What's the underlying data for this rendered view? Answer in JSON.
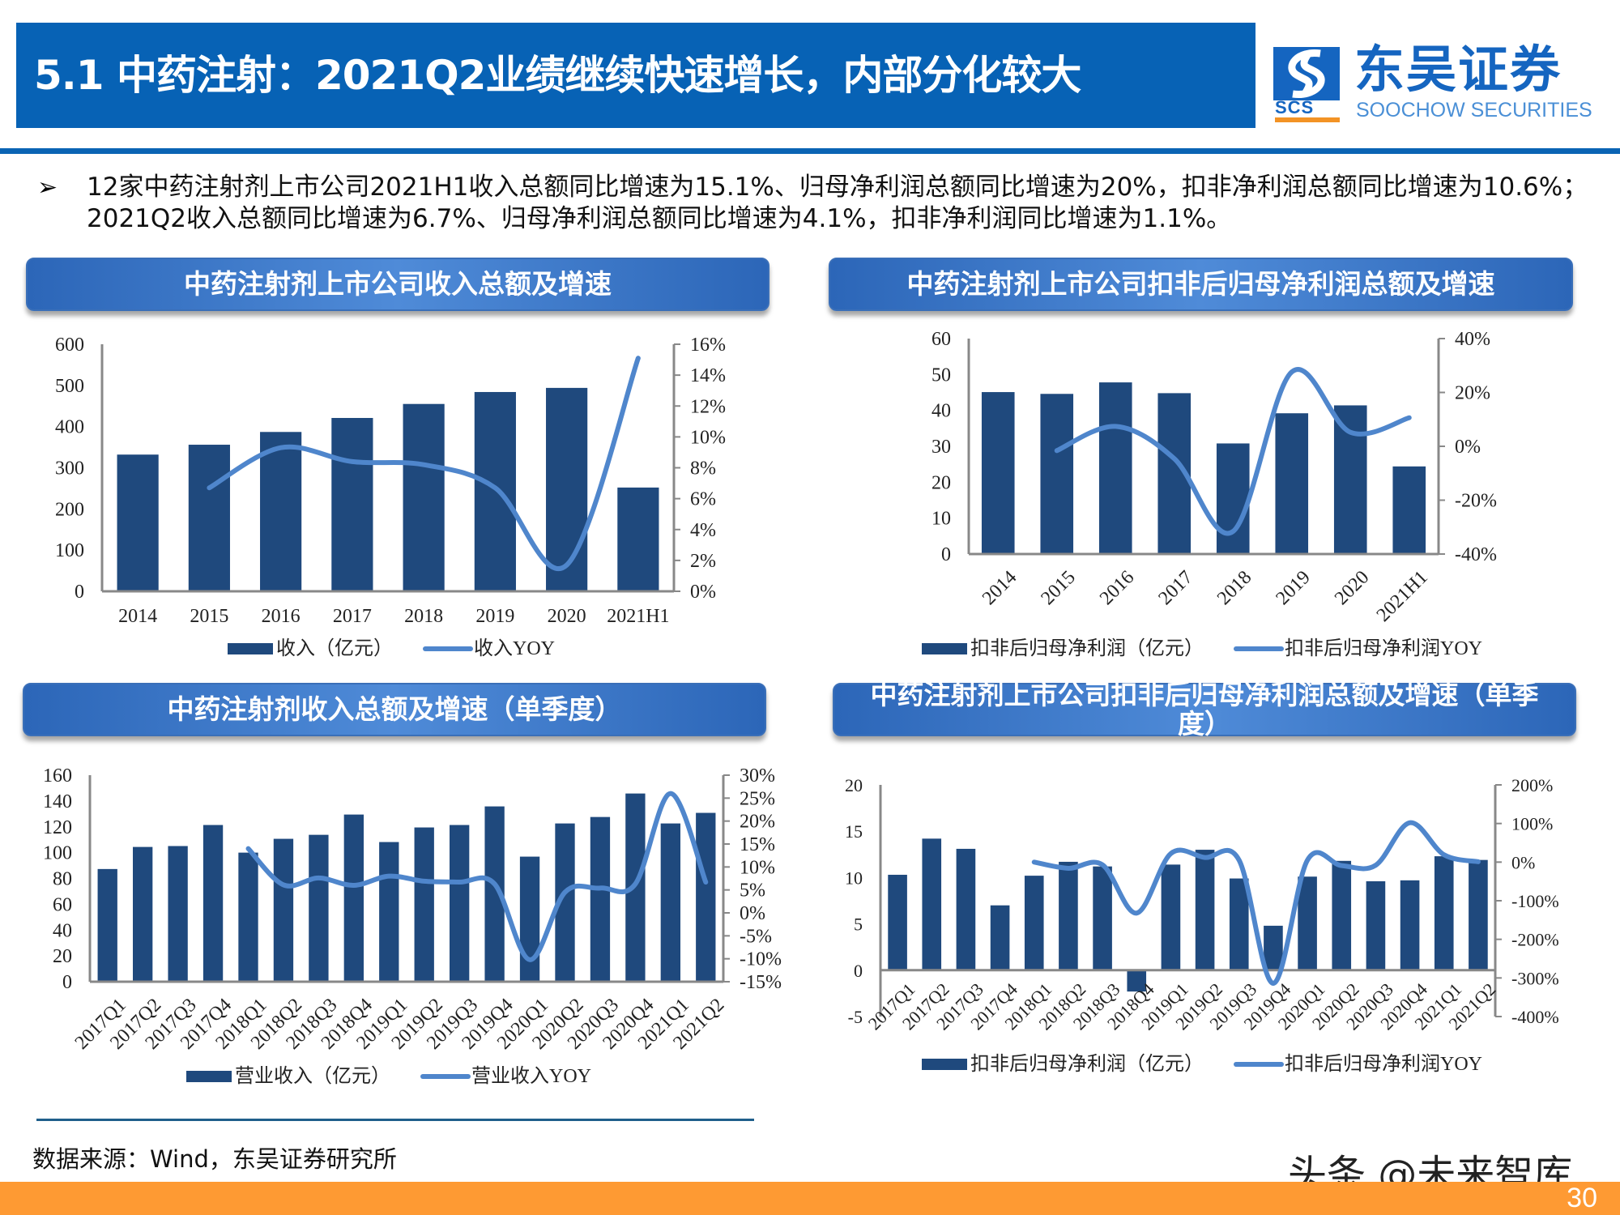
{
  "header": {
    "title": "5.1 中药注射：2021Q2业绩继续快速增长，内部分化较大",
    "logo_cn": "东吴证券",
    "logo_en": "SOOCHOW SECURITIES",
    "logo_abbr": "SCS"
  },
  "summary": {
    "bullet_icon": "arrowhead-bullet",
    "text": "12家中药注射剂上市公司2021H1收入总额同比增速为15.1%、归母净利润总额同比增速为20%，扣非净利润总额同比增速为10.6%；2021Q2收入总额同比增速为6.7%、归母净利润总额同比增速为4.1%，扣非净利润同比增速为1.1%。"
  },
  "panels": [
    {
      "title": "中药注射剂上市公司收入总额及增速"
    },
    {
      "title": "中药注射剂上市公司扣非后归母净利润总额及增速"
    },
    {
      "title": "中药注射剂收入总额及增速（单季度）"
    },
    {
      "title": "中药注射剂上市公司扣非后归母净利润总额及增速（单季度）"
    }
  ],
  "colors": {
    "bar": "#1f497d",
    "line": "#4f86cc",
    "title_bar": "#0762b5",
    "footer": "#fe9a33"
  },
  "chart_data": [
    {
      "type": "bar+line",
      "categories": [
        "2014",
        "2015",
        "2016",
        "2017",
        "2018",
        "2019",
        "2020",
        "2021H1"
      ],
      "ylim": [
        0,
        600
      ],
      "ystep": 100,
      "y2lim": [
        0,
        16
      ],
      "y2step": 2,
      "y2_format": "percent",
      "grid": false,
      "legend": "bottom",
      "series": [
        {
          "name": "收入（亿元）",
          "type": "bar",
          "axis": "left",
          "values": [
            332,
            356,
            387,
            421,
            455,
            484,
            494,
            252
          ]
        },
        {
          "name": "收入YOY",
          "type": "line",
          "axis": "right",
          "values": [
            null,
            6.7,
            9.3,
            8.4,
            8.2,
            6.7,
            1.7,
            15.1
          ]
        }
      ]
    },
    {
      "type": "bar+line",
      "categories": [
        "2014",
        "2015",
        "2016",
        "2017",
        "2018",
        "2019",
        "2020",
        "2021H1"
      ],
      "ylim": [
        0,
        60
      ],
      "ystep": 10,
      "y2lim": [
        -40,
        40
      ],
      "y2step": 20,
      "y2_format": "percent",
      "grid": false,
      "legend": "bottom",
      "series": [
        {
          "name": "扣非后归母净利润（亿元）",
          "type": "bar",
          "axis": "left",
          "values": [
            45.1,
            44.6,
            47.8,
            44.8,
            30.8,
            39.2,
            41.4,
            24.4
          ]
        },
        {
          "name": "扣非后归母净利润YOY",
          "type": "line",
          "axis": "right",
          "values": [
            null,
            -1.6,
            7.4,
            -4.6,
            -31.6,
            27.6,
            5.2,
            10.6
          ]
        }
      ]
    },
    {
      "type": "bar+line",
      "categories": [
        "2017Q1",
        "2017Q2",
        "2017Q3",
        "2017Q4",
        "2018Q1",
        "2018Q2",
        "2018Q3",
        "2018Q4",
        "2019Q1",
        "2019Q2",
        "2019Q3",
        "2019Q4",
        "2020Q1",
        "2020Q2",
        "2020Q3",
        "2020Q4",
        "2021Q1",
        "2021Q2"
      ],
      "ylim": [
        0,
        160
      ],
      "ystep": 20,
      "y2lim": [
        -15,
        30
      ],
      "y2step": 5,
      "y2_format": "percent",
      "grid": false,
      "legend": "bottom",
      "series": [
        {
          "name": "营业收入（亿元）",
          "type": "bar",
          "axis": "left",
          "values": [
            87.3,
            104.4,
            105.1,
            121.4,
            100.0,
            110.7,
            113.8,
            129.5,
            108.2,
            119.5,
            121.4,
            135.8,
            96.9,
            122.6,
            127.6,
            145.8,
            122.6,
            130.8
          ]
        },
        {
          "name": "营业收入YOY",
          "type": "line",
          "axis": "right",
          "values": [
            null,
            null,
            null,
            null,
            14.0,
            6.1,
            7.6,
            6.0,
            8.0,
            6.9,
            6.7,
            6.3,
            -10.2,
            4.5,
            5.4,
            6.3,
            26.0,
            6.7
          ]
        }
      ]
    },
    {
      "type": "bar+line",
      "categories": [
        "2017Q1",
        "2017Q2",
        "2017Q3",
        "2017Q4",
        "2018Q1",
        "2018Q2",
        "2018Q3",
        "2018Q4",
        "2019Q1",
        "2019Q2",
        "2019Q3",
        "2019Q4",
        "2020Q1",
        "2020Q2",
        "2020Q3",
        "2020Q4",
        "2021Q1",
        "2021Q2"
      ],
      "ylim": [
        -5,
        20
      ],
      "ystep": 5,
      "y2lim": [
        -400,
        200
      ],
      "y2step": 100,
      "y2_format": "percent",
      "grid": false,
      "legend": "bottom",
      "series": [
        {
          "name": "扣非后归母净利润（亿元）",
          "type": "bar",
          "axis": "left",
          "values": [
            10.3,
            14.2,
            13.1,
            7.0,
            10.2,
            11.7,
            11.2,
            -2.3,
            11.4,
            13.0,
            9.9,
            4.8,
            10.1,
            11.8,
            9.6,
            9.7,
            12.3,
            11.9
          ]
        },
        {
          "name": "扣非后归母净利润YOY",
          "type": "line",
          "axis": "right",
          "values": [
            null,
            null,
            null,
            null,
            0,
            -16,
            -7,
            -132,
            22,
            12,
            5,
            -314,
            5,
            -9,
            -8,
            102,
            19,
            1
          ]
        }
      ]
    }
  ],
  "footer": {
    "source": "数据来源：Wind，东吴证券研究所",
    "watermark": "头条 @未来智库",
    "page": "30"
  }
}
